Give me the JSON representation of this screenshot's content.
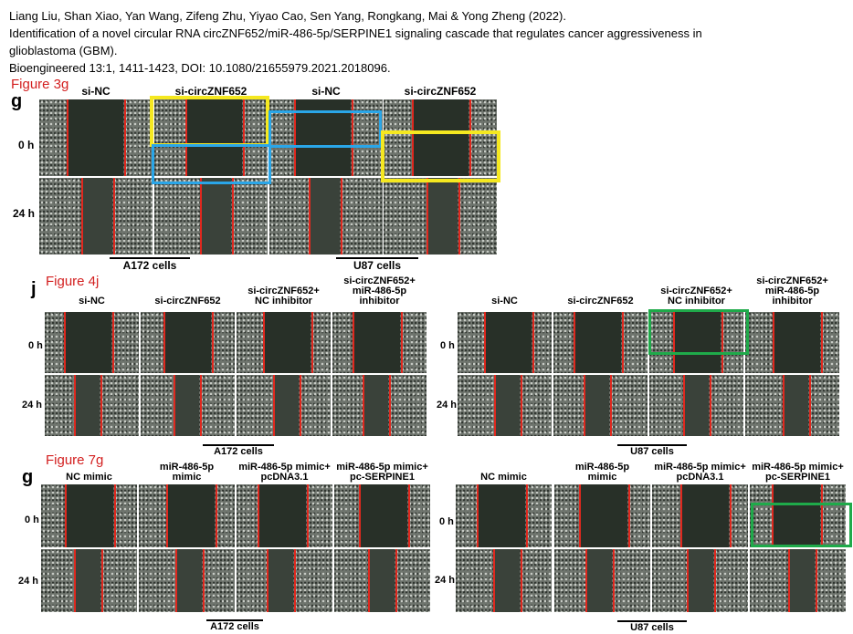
{
  "citation": {
    "line1": "Liang Liu, Shan Xiao, Yan Wang, Zifeng Zhu, Yiyao Cao, Sen Yang, Rongkang, Mai & Yong Zheng (2022).",
    "line2": "Identification of a novel circular RNA circZNF652/miR-486-5p/SERPINE1 signaling cascade that regulates cancer aggressiveness in",
    "line3": "glioblastoma (GBM).",
    "line4": "Bioengineered 13:1, 1411-1423,  DOI: 10.1080/21655979.2021.2018096."
  },
  "fig3g": {
    "figure_label": "Figure 3g",
    "panel_letter": "g",
    "headers": [
      "si-NC",
      "si-circZNF652",
      "si-NC",
      "si-circZNF652"
    ],
    "rows": [
      "0 h",
      "24 h"
    ],
    "groups": [
      "A172 cells",
      "U87 cells"
    ]
  },
  "fig4j": {
    "figure_label": "Figure 4j",
    "panel_letter": "j",
    "headers_left": [
      "si-NC",
      "si-circZNF652",
      "si-circZNF652+\nNC inhibitor",
      "si-circZNF652+\nmiR-486-5p\ninhibitor"
    ],
    "headers_right": [
      "si-NC",
      "si-circZNF652",
      "si-circZNF652+\nNC inhibitor",
      "si-circZNF652+\nmiR-486-5p\ninhibitor"
    ],
    "rows": [
      "0 h",
      "24 h"
    ],
    "groups": [
      "A172 cells",
      "U87 cells"
    ]
  },
  "fig7g": {
    "figure_label": "Figure 7g",
    "panel_letter": "g",
    "headers_left": [
      "NC mimic",
      "miR-486-5p\nmimic",
      "miR-486-5p mimic+\npcDNA3.1",
      "miR-486-5p mimic+\npc-SERPINE1"
    ],
    "headers_right": [
      "NC mimic",
      "miR-486-5p\nmimic",
      "miR-486-5p mimic+\npcDNA3.1",
      "miR-486-5p mimic+\npc-SERPINE1"
    ],
    "rows": [
      "0 h",
      "24 h"
    ],
    "groups": [
      "A172 cells",
      "U87 cells"
    ]
  },
  "colors": {
    "annotation_red": "#d32020",
    "highlight_yellow": "#f5e820",
    "highlight_blue": "#2aa6e8",
    "highlight_green": "#1faa4a",
    "scratch_line_red": "#e0281e"
  }
}
